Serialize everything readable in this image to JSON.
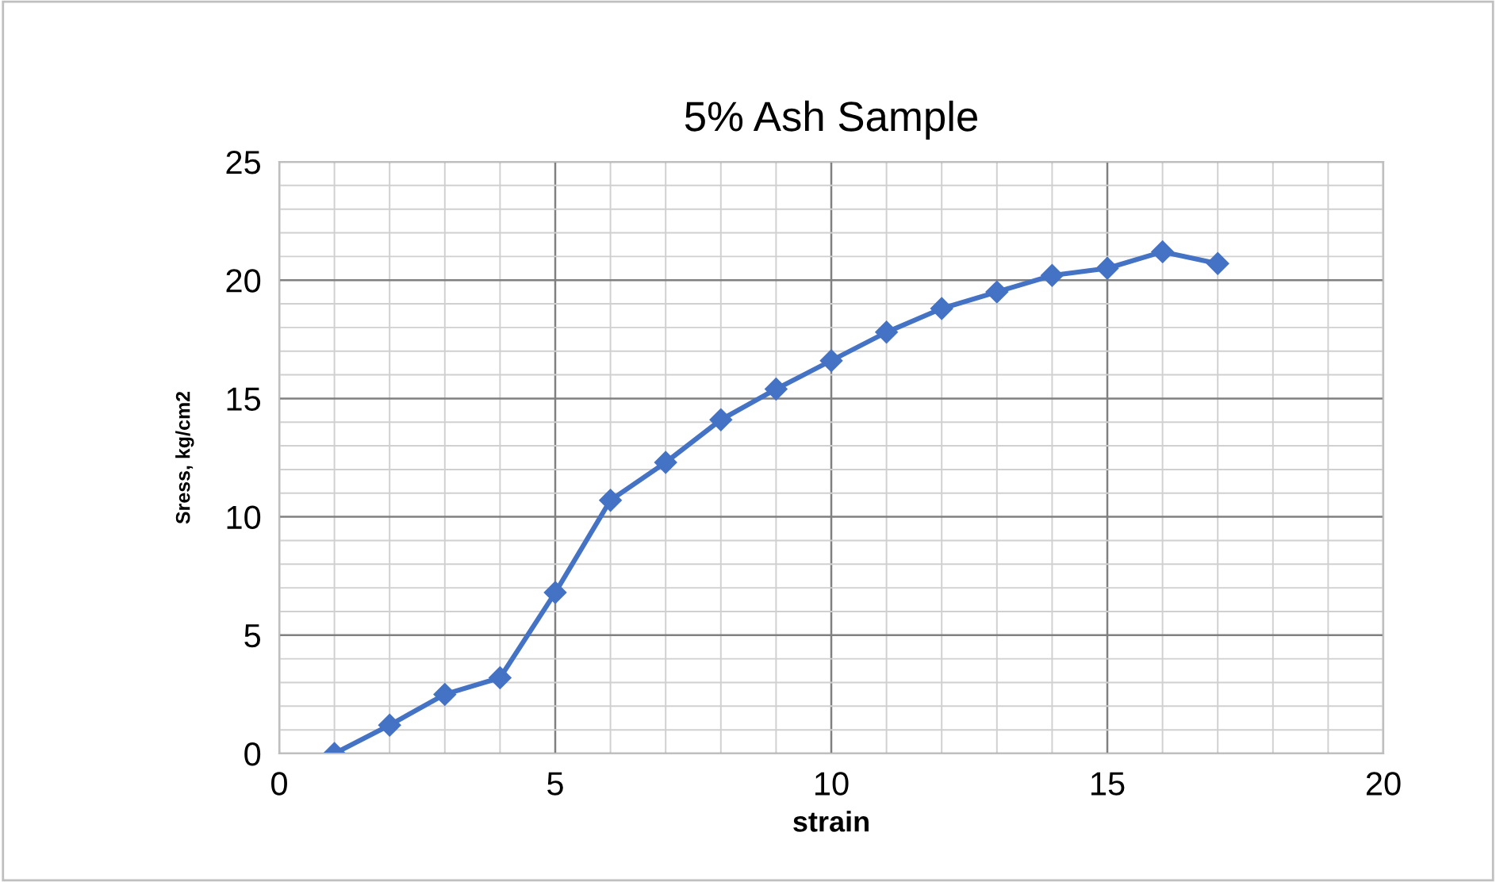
{
  "chart_data": {
    "type": "line",
    "title": "5% Ash Sample",
    "xlabel": "strain",
    "ylabel": "Sress, kg/cm2",
    "x": [
      1,
      2,
      3,
      4,
      5,
      6,
      7,
      8,
      9,
      10,
      11,
      12,
      13,
      14,
      15,
      16,
      17
    ],
    "series": [
      {
        "color": "#4472c4",
        "values": [
          0,
          1.2,
          2.5,
          3.2,
          6.8,
          10.7,
          12.3,
          14.1,
          15.4,
          16.6,
          17.8,
          18.8,
          19.5,
          20.2,
          20.5,
          21.2,
          20.7
        ]
      }
    ],
    "xlim": [
      0,
      20
    ],
    "xticks": [
      0,
      5,
      10,
      15,
      20
    ],
    "ylim": [
      0,
      25
    ],
    "yticks": [
      0,
      5,
      10,
      15,
      20,
      25
    ],
    "grid": true,
    "marker": "diamond",
    "line_style": "solid",
    "legend": false
  }
}
